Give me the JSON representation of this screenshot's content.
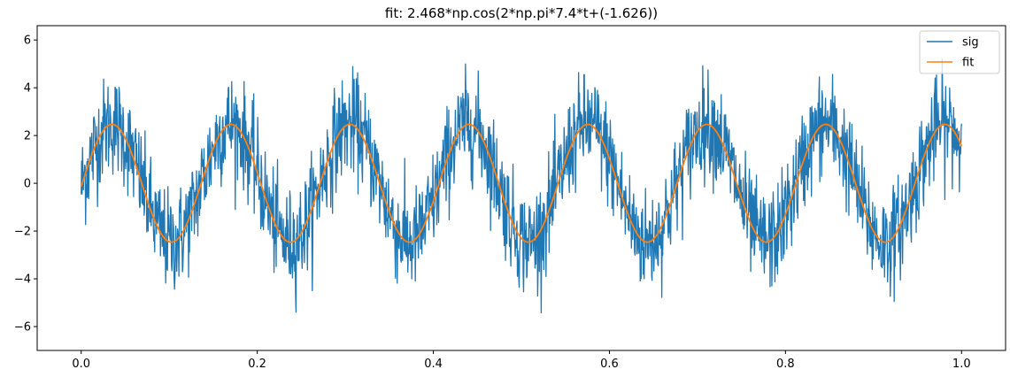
{
  "chart_data": {
    "type": "line",
    "title": "fit: 2.468*np.cos(2*np.pi*7.4*t+(-1.626))",
    "xlabel": "",
    "ylabel": "",
    "xlim": [
      -0.05,
      1.05
    ],
    "ylim": [
      -7,
      6.6
    ],
    "xticks": [
      0.0,
      0.2,
      0.4,
      0.6,
      0.8,
      1.0
    ],
    "xtick_labels": [
      "0.0",
      "0.2",
      "0.4",
      "0.6",
      "0.8",
      "1.0"
    ],
    "yticks": [
      -6,
      -4,
      -2,
      0,
      2,
      4,
      6
    ],
    "ytick_labels": [
      "−6",
      "−4",
      "−2",
      "0",
      "2",
      "4",
      "6"
    ],
    "grid": false,
    "legend_position": "top-right",
    "fit_params": {
      "amplitude": 2.468,
      "frequency": 7.4,
      "phase": -1.626
    },
    "series": [
      {
        "name": "sig",
        "color": "#1f77b4",
        "x_range": [
          0,
          1
        ],
        "noise_amplitude": 2.9
      },
      {
        "name": "fit",
        "color": "#ff7f0e",
        "x_range": [
          0,
          1
        ]
      }
    ]
  }
}
